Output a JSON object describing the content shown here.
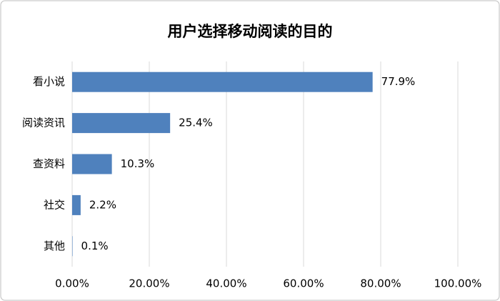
{
  "chart_data": {
    "type": "bar",
    "orientation": "horizontal",
    "title": "用户选择移动阅读的目的",
    "categories": [
      "看小说",
      "阅读资讯",
      "查资料",
      "社交",
      "其他"
    ],
    "values": [
      77.9,
      25.4,
      10.3,
      2.2,
      0.1
    ],
    "value_labels": [
      "77.9%",
      "25.4%",
      "10.3%",
      "2.2%",
      "0.1%"
    ],
    "color": "#4f81bd",
    "xlim": [
      0,
      100
    ],
    "xticks": [
      {
        "value": 0,
        "label": "0.00%"
      },
      {
        "value": 20,
        "label": "20.00%"
      },
      {
        "value": 40,
        "label": "40.00%"
      },
      {
        "value": 60,
        "label": "60.00%"
      },
      {
        "value": 80,
        "label": "80.00%"
      },
      {
        "value": 100,
        "label": "100.00%"
      }
    ],
    "grid": true
  }
}
